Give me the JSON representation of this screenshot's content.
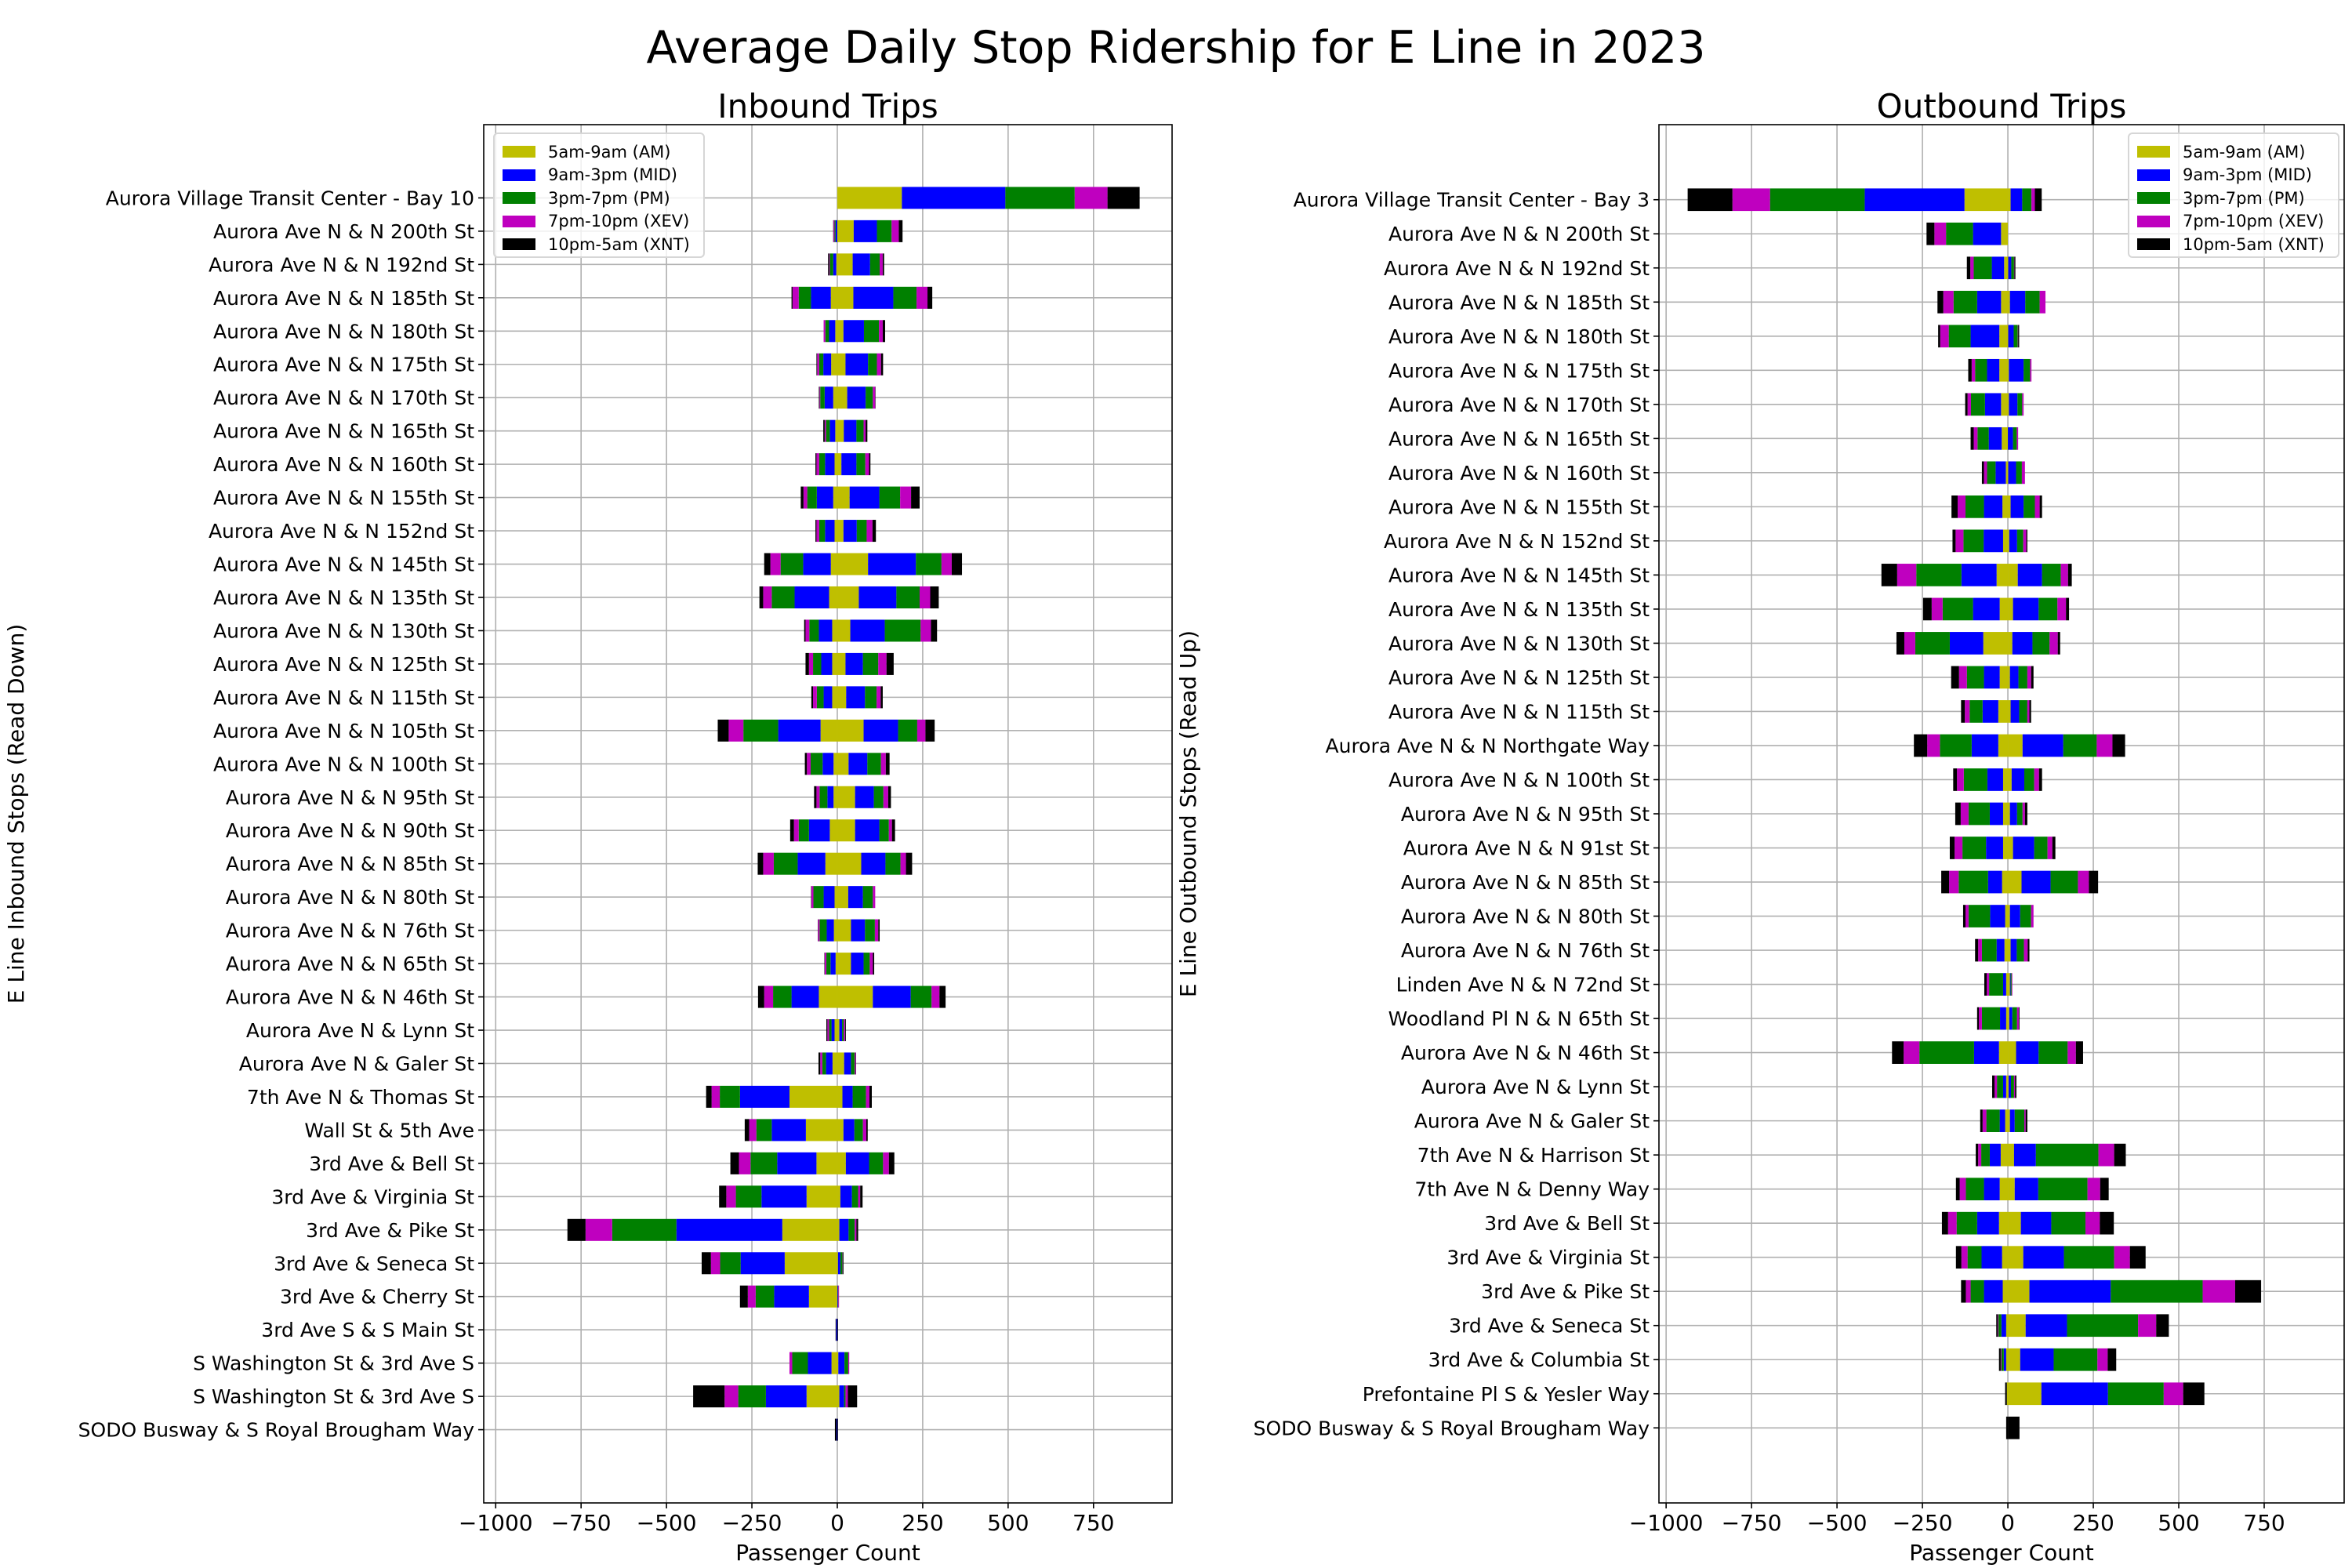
{
  "figure_title": "Average Daily Stop Ridership for E Line in 2023",
  "chart_data": [
    {
      "type": "bar",
      "orientation": "horizontal-diverging-stacked",
      "title": "Inbound Trips",
      "xlabel": "Passenger Count",
      "ylabel": "E Line Inbound Stops (Read Down)",
      "xlim": [
        -1035,
        980
      ],
      "xticks": [
        -1000,
        -750,
        -500,
        -250,
        0,
        250,
        500,
        750
      ],
      "xtick_labels": [
        "−1000",
        "−750",
        "−500",
        "−250",
        "0",
        "250",
        "500",
        "750"
      ],
      "grid": true,
      "legend_position": "top-left",
      "categories": [
        "Aurora Village Transit Center - Bay 10",
        "Aurora Ave N & N 200th St",
        "Aurora Ave N & N 192nd St",
        "Aurora Ave N & N 185th St",
        "Aurora Ave N & N 180th St",
        "Aurora Ave N & N 175th St",
        "Aurora Ave N & N 170th St",
        "Aurora Ave N & N 165th St",
        "Aurora Ave N & N 160th St",
        "Aurora Ave N & N 155th St",
        "Aurora Ave N & N 152nd St",
        "Aurora Ave N & N 145th St",
        "Aurora Ave N & N 135th St",
        "Aurora Ave N & N 130th St",
        "Aurora Ave N & N 125th St",
        "Aurora Ave N & N 115th St",
        "Aurora Ave N & N 105th St",
        "Aurora Ave N & N 100th St",
        "Aurora Ave N & N 95th St",
        "Aurora Ave N & N 90th St",
        "Aurora Ave N & N 85th St",
        "Aurora Ave N & N 80th St",
        "Aurora Ave N & N 76th St",
        "Aurora Ave N & N 65th St",
        "Aurora Ave N & N 46th St",
        "Aurora Ave N & Lynn St",
        "Aurora Ave N & Galer St",
        "7th Ave N & Thomas St",
        "Wall St & 5th Ave",
        "3rd Ave & Bell St",
        "3rd Ave & Virginia St",
        "3rd Ave & Pike St",
        "3rd Ave & Seneca St",
        "3rd Ave & Cherry St",
        "3rd Ave S & S Main St",
        "S Washington St & 3rd Ave S",
        "S Washington St & 3rd Ave S",
        "SODO Busway & S Royal Brougham Way"
      ],
      "series": [
        {
          "name": "5am-9am (AM)",
          "color": "#bfbf00",
          "left": [
            0,
            0,
            -3,
            -19,
            -6,
            -18,
            -12,
            -6,
            -8,
            -12,
            -8,
            -19,
            -24,
            -15,
            -15,
            -15,
            -49,
            -11,
            -11,
            -22,
            -35,
            -8,
            -10,
            -5,
            -54,
            -8,
            -14,
            -140,
            -92,
            -61,
            -90,
            -161,
            -154,
            -83,
            0,
            -17,
            -90,
            0
          ],
          "right": [
            189,
            48,
            45,
            47,
            18,
            24,
            29,
            19,
            12,
            36,
            18,
            90,
            63,
            38,
            24,
            26,
            77,
            33,
            52,
            52,
            70,
            32,
            40,
            40,
            104,
            6,
            20,
            15,
            18,
            25,
            9,
            6,
            2,
            0,
            0,
            3,
            6,
            0
          ]
        },
        {
          "name": "9am-3pm (MID)",
          "color": "#0000ff",
          "left": [
            0,
            -5,
            -9,
            -58,
            -18,
            -23,
            -25,
            -16,
            -28,
            -48,
            -28,
            -81,
            -101,
            -39,
            -32,
            -25,
            -124,
            -32,
            -18,
            -61,
            -81,
            -32,
            -21,
            -15,
            -80,
            -9,
            -19,
            -145,
            -100,
            -115,
            -132,
            -310,
            -129,
            -102,
            -3,
            -69,
            -119,
            -2
          ],
          "right": [
            303,
            68,
            51,
            117,
            60,
            66,
            54,
            37,
            44,
            87,
            39,
            140,
            110,
            101,
            51,
            55,
            101,
            55,
            55,
            71,
            71,
            43,
            41,
            37,
            111,
            8,
            20,
            30,
            32,
            68,
            34,
            27,
            7,
            2,
            0,
            18,
            14,
            0
          ]
        },
        {
          "name": "3pm-7pm (PM)",
          "color": "#008000",
          "left": [
            0,
            -3,
            -10,
            -36,
            -11,
            -12,
            -13,
            -11,
            -17,
            -28,
            -17,
            -66,
            -67,
            -28,
            -24,
            -20,
            -102,
            -35,
            -23,
            -30,
            -70,
            -30,
            -21,
            -12,
            -54,
            -7,
            -11,
            -59,
            -45,
            -78,
            -75,
            -188,
            -60,
            -54,
            0,
            -46,
            -81,
            0
          ],
          "right": [
            203,
            43,
            28,
            68,
            44,
            26,
            21,
            21,
            26,
            61,
            29,
            75,
            68,
            105,
            45,
            34,
            56,
            40,
            28,
            28,
            44,
            29,
            29,
            18,
            61,
            5,
            11,
            39,
            25,
            41,
            18,
            18,
            6,
            1,
            0,
            11,
            4,
            0
          ]
        },
        {
          "name": "7pm-10pm (XEV)",
          "color": "#bf00bf",
          "left": [
            0,
            -3,
            -2,
            -18,
            -5,
            -6,
            -2,
            -4,
            -8,
            -11,
            -8,
            -30,
            -25,
            -11,
            -12,
            -11,
            -43,
            -11,
            -9,
            -14,
            -31,
            -6,
            -4,
            -5,
            -26,
            -5,
            -6,
            -24,
            -21,
            -34,
            -28,
            -78,
            -27,
            -23,
            0,
            -8,
            -40,
            0
          ],
          "right": [
            96,
            21,
            9,
            32,
            11,
            12,
            7,
            6,
            11,
            32,
            17,
            30,
            31,
            30,
            24,
            12,
            24,
            14,
            14,
            9,
            16,
            7,
            10,
            9,
            23,
            4,
            3,
            10,
            10,
            17,
            6,
            5,
            1,
            2,
            0,
            3,
            7,
            0
          ]
        },
        {
          "name": "10pm-5am (XNT)",
          "color": "#000000",
          "left": [
            0,
            -1,
            -3,
            -3,
            0,
            -2,
            -2,
            -4,
            -3,
            -8,
            -3,
            -18,
            -11,
            -4,
            -10,
            -5,
            -32,
            -6,
            -7,
            -11,
            -16,
            -1,
            -1,
            -1,
            -18,
            -3,
            -5,
            -16,
            -13,
            -25,
            -21,
            -53,
            -27,
            -23,
            -2,
            0,
            -92,
            -5
          ],
          "right": [
            94,
            11,
            4,
            14,
            7,
            6,
            1,
            5,
            4,
            25,
            10,
            30,
            25,
            18,
            21,
            6,
            27,
            11,
            8,
            9,
            18,
            0,
            4,
            4,
            18,
            2,
            1,
            7,
            4,
            16,
            7,
            5,
            2,
            0,
            2,
            0,
            27,
            2
          ]
        }
      ]
    },
    {
      "type": "bar",
      "orientation": "horizontal-diverging-stacked",
      "title": "Outbound Trips",
      "xlabel": "Passenger Count",
      "ylabel": "E Line Outbound Stops (Read Up)",
      "xlim": [
        -1021,
        984
      ],
      "xticks": [
        -1000,
        -750,
        -500,
        -250,
        0,
        250,
        500,
        750
      ],
      "xtick_labels": [
        "−1000",
        "−750",
        "−500",
        "−250",
        "0",
        "250",
        "500",
        "750"
      ],
      "grid": true,
      "legend_position": "top-right",
      "categories": [
        "Aurora Village Transit Center - Bay 3",
        "Aurora Ave N & N 200th St",
        "Aurora Ave N & N 192nd St",
        "Aurora Ave N & N 185th St",
        "Aurora Ave N & N 180th St",
        "Aurora Ave N & N 175th St",
        "Aurora Ave N & N 170th St",
        "Aurora Ave N & N 165th St",
        "Aurora Ave N & N 160th St",
        "Aurora Ave N & N 155th St",
        "Aurora Ave N & N 152nd St",
        "Aurora Ave N & N 145th St",
        "Aurora Ave N & N 135th St",
        "Aurora Ave N & N 130th St",
        "Aurora Ave N & N 125th St",
        "Aurora Ave N & N 115th St",
        "Aurora Ave N & N Northgate Way",
        "Aurora Ave N & N 100th St",
        "Aurora Ave N & N 95th St",
        "Aurora Ave N & N 91st St",
        "Aurora Ave N & N 85th St",
        "Aurora Ave N & N 80th St",
        "Aurora Ave N & N 76th St",
        "Linden Ave N & N 72nd St",
        "Woodland Pl N & N 65th St",
        "Aurora Ave N & N 46th St",
        "Aurora Ave N & Lynn St",
        "Aurora Ave N & Galer St",
        "7th Ave N & Harrison St",
        "7th Ave N & Denny Way",
        "3rd Ave & Bell St",
        "3rd Ave & Virginia St",
        "3rd Ave & Pike St",
        "3rd Ave & Seneca St",
        "3rd Ave & Columbia St",
        "Prefontaine Pl S & Yesler Way",
        "SODO Busway & S Royal Brougham Way"
      ],
      "series": [
        {
          "name": "5am-9am (AM)",
          "color": "#bfbf00",
          "left": [
            -127,
            -20,
            -11,
            -20,
            -25,
            -25,
            -20,
            -18,
            -6,
            -16,
            -14,
            -33,
            -24,
            -72,
            -24,
            -28,
            -28,
            -14,
            -14,
            -14,
            -17,
            -8,
            -10,
            -5,
            -5,
            -26,
            -5,
            -8,
            -21,
            -24,
            -26,
            -17,
            -15,
            -5,
            -5,
            -3,
            0
          ],
          "right": [
            8,
            0,
            1,
            6,
            1,
            3,
            3,
            0,
            1,
            8,
            4,
            29,
            15,
            13,
            6,
            8,
            43,
            11,
            6,
            15,
            40,
            6,
            8,
            6,
            4,
            24,
            2,
            6,
            18,
            20,
            38,
            45,
            63,
            52,
            36,
            98,
            0
          ]
        },
        {
          "name": "9am-3pm (MID)",
          "color": "#0000ff",
          "left": [
            -292,
            -82,
            -36,
            -70,
            -84,
            -36,
            -47,
            -38,
            -30,
            -54,
            -57,
            -103,
            -78,
            -98,
            -46,
            -46,
            -78,
            -46,
            -39,
            -50,
            -41,
            -44,
            -23,
            -9,
            -18,
            -73,
            -9,
            -16,
            -32,
            -46,
            -64,
            -60,
            -55,
            -14,
            -7,
            0,
            0
          ],
          "right": [
            34,
            0,
            9,
            45,
            16,
            43,
            25,
            15,
            23,
            38,
            23,
            71,
            75,
            59,
            25,
            25,
            119,
            37,
            21,
            62,
            85,
            30,
            18,
            2,
            9,
            66,
            7,
            14,
            64,
            69,
            89,
            119,
            238,
            121,
            98,
            195,
            0
          ]
        },
        {
          "name": "3pm-7pm (PM)",
          "color": "#008000",
          "left": [
            -277,
            -79,
            -53,
            -69,
            -64,
            -35,
            -41,
            -33,
            -25,
            -54,
            -59,
            -132,
            -89,
            -101,
            -50,
            -38,
            -93,
            -69,
            -62,
            -69,
            -86,
            -63,
            -43,
            -41,
            -53,
            -160,
            -18,
            -39,
            -25,
            -53,
            -60,
            -41,
            -39,
            -9,
            -7,
            0,
            0
          ],
          "right": [
            27,
            0,
            8,
            42,
            12,
            19,
            14,
            11,
            17,
            33,
            18,
            55,
            55,
            50,
            26,
            24,
            98,
            29,
            16,
            39,
            80,
            32,
            21,
            3,
            14,
            85,
            9,
            28,
            183,
            144,
            100,
            147,
            269,
            208,
            128,
            163,
            0
          ]
        },
        {
          "name": "7pm-10pm (XEV)",
          "color": "#bf00bf",
          "left": [
            -110,
            -34,
            -10,
            -30,
            -25,
            -10,
            -10,
            -11,
            -9,
            -23,
            -23,
            -56,
            -32,
            -32,
            -23,
            -14,
            -37,
            -20,
            -23,
            -23,
            -28,
            -9,
            -11,
            -7,
            -9,
            -46,
            -7,
            -11,
            -9,
            -18,
            -25,
            -18,
            -14,
            -2,
            -2,
            0,
            0
          ],
          "right": [
            10,
            0,
            1,
            17,
            1,
            4,
            4,
            4,
            9,
            14,
            9,
            21,
            25,
            24,
            11,
            6,
            46,
            14,
            7,
            14,
            32,
            7,
            11,
            2,
            5,
            24,
            3,
            4,
            46,
            37,
            42,
            46,
            95,
            53,
            30,
            57,
            0
          ]
        },
        {
          "name": "10pm-5am (XNT)",
          "color": "#000000",
          "left": [
            -131,
            -23,
            -10,
            -17,
            -6,
            -10,
            -7,
            -9,
            -6,
            -18,
            -9,
            -46,
            -25,
            -23,
            -23,
            -11,
            -39,
            -11,
            -16,
            -14,
            -23,
            -7,
            -9,
            -7,
            -5,
            -34,
            -7,
            -7,
            -7,
            -11,
            -18,
            -16,
            -14,
            -4,
            -5,
            -5,
            -5
          ],
          "right": [
            20,
            0,
            3,
            0,
            3,
            0,
            0,
            0,
            0,
            7,
            3,
            11,
            9,
            7,
            7,
            5,
            37,
            9,
            7,
            9,
            27,
            0,
            5,
            0,
            2,
            21,
            4,
            5,
            34,
            25,
            41,
            46,
            76,
            37,
            25,
            62,
            34
          ]
        }
      ]
    }
  ]
}
